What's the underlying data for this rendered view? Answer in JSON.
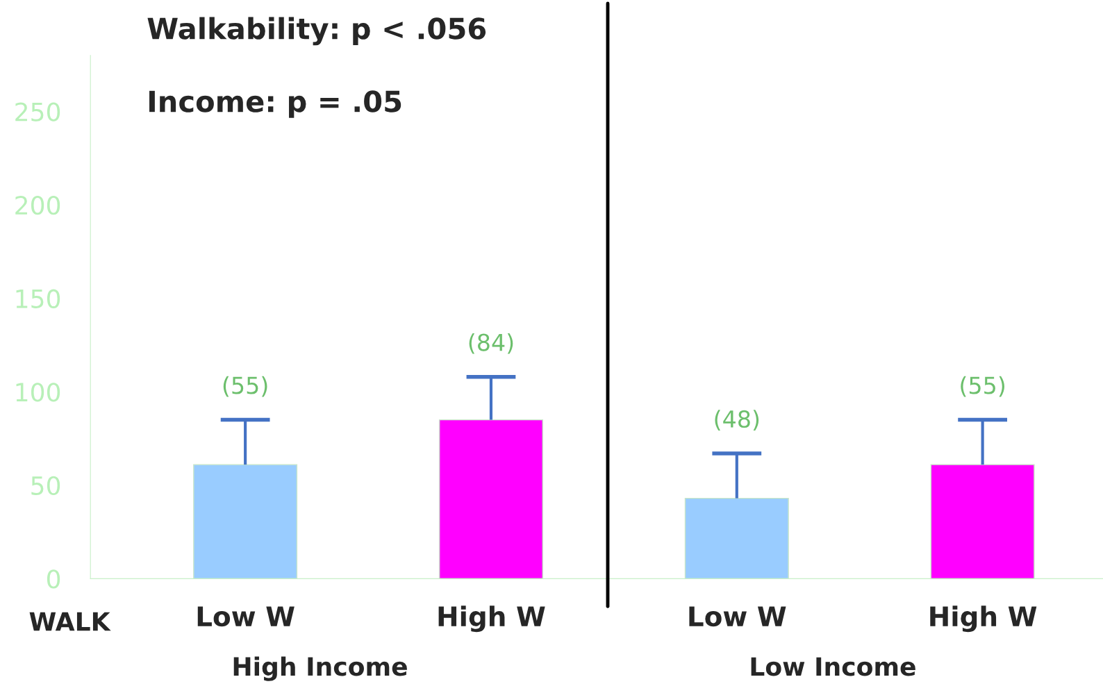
{
  "chart_data": {
    "type": "bar",
    "categories": [
      "Low W",
      "High W",
      "Low W",
      "High W"
    ],
    "values": [
      61,
      85,
      43,
      61
    ],
    "colors": [
      "#99ccff",
      "#ff00ff",
      "#99ccff",
      "#ff00ff"
    ],
    "errors": [
      [
        61,
        85
      ],
      [
        85,
        108
      ],
      [
        43,
        67
      ],
      [
        61,
        85
      ]
    ],
    "ylim": [
      0,
      280
    ],
    "yticks": [
      0,
      50,
      100,
      150,
      200,
      250
    ],
    "grid": false,
    "annotations": [
      "(55)",
      "(84)",
      "(48)",
      "(55)",
      "Walkability: p < .056",
      "Income: p = .05",
      "WALK",
      "High Income",
      "Low Income"
    ]
  }
}
